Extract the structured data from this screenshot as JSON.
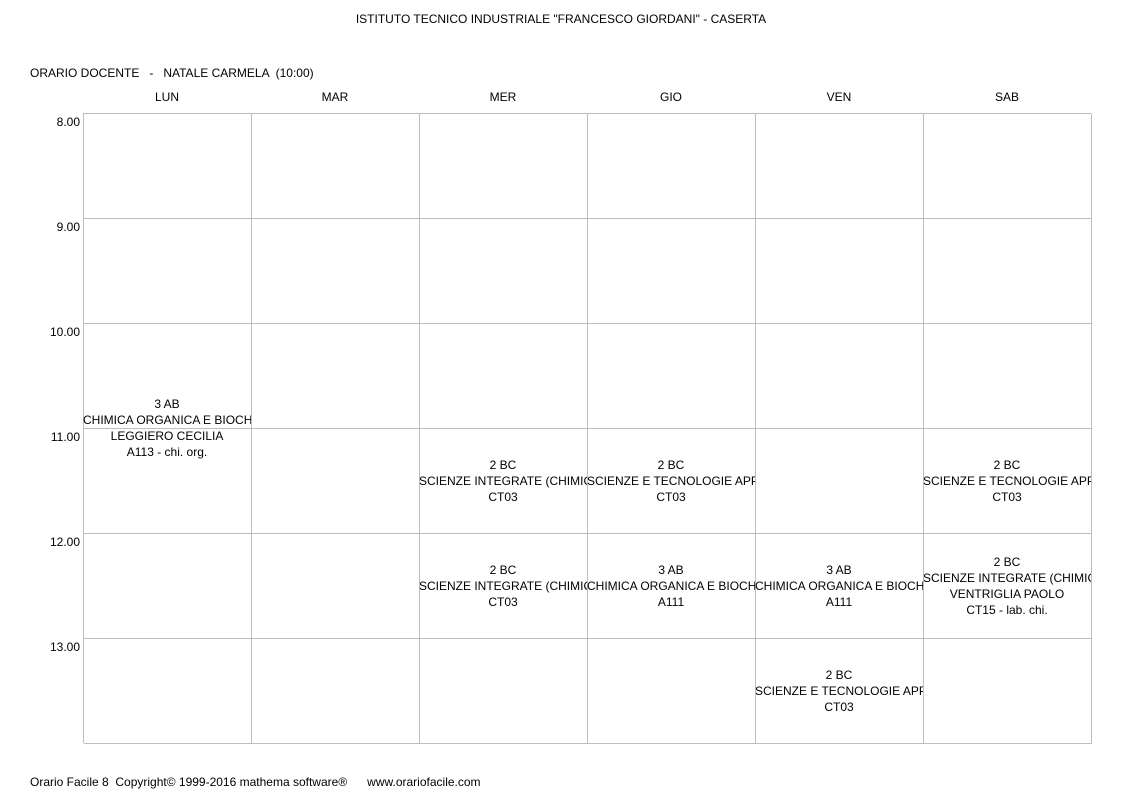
{
  "school_title": "ISTITUTO TECNICO INDUSTRIALE \"FRANCESCO GIORDANI\" - CASERTA",
  "teacher_line": "ORARIO DOCENTE   -   NATALE CARMELA  (10:00)",
  "days": [
    "LUN",
    "MAR",
    "MER",
    "GIO",
    "VEN",
    "SAB"
  ],
  "times": [
    "8.00",
    "9.00",
    "10.00",
    "11.00",
    "12.00",
    "13.00"
  ],
  "lessons": [
    {
      "day": 0,
      "start": 2,
      "span": 2,
      "lines": [
        "3 AB",
        "CHIMICA ORGANICA E BIOCHIMI",
        "LEGGIERO CECILIA",
        "A113 - chi. org."
      ]
    },
    {
      "day": 2,
      "start": 3,
      "span": 1,
      "lines": [
        "2 BC",
        "SCIENZE INTEGRATE (CHIMICA",
        "CT03"
      ]
    },
    {
      "day": 3,
      "start": 3,
      "span": 1,
      "lines": [
        "2 BC",
        "SCIENZE E TECNOLOGIE APPLI",
        "CT03"
      ]
    },
    {
      "day": 5,
      "start": 3,
      "span": 1,
      "lines": [
        "2 BC",
        "SCIENZE E TECNOLOGIE APPLI",
        "CT03"
      ]
    },
    {
      "day": 2,
      "start": 4,
      "span": 1,
      "lines": [
        "2 BC",
        "SCIENZE INTEGRATE (CHIMICA",
        "CT03"
      ]
    },
    {
      "day": 3,
      "start": 4,
      "span": 1,
      "lines": [
        "3 AB",
        "CHIMICA ORGANICA E BIOCHIMI",
        "A111"
      ]
    },
    {
      "day": 4,
      "start": 4,
      "span": 1,
      "lines": [
        "3 AB",
        "CHIMICA ORGANICA E BIOCHIMI",
        "A111"
      ]
    },
    {
      "day": 5,
      "start": 4,
      "span": 1,
      "lines": [
        "2 BC",
        "SCIENZE INTEGRATE (CHIMICA",
        "VENTRIGLIA PAOLO",
        "CT15 - lab. chi."
      ]
    },
    {
      "day": 4,
      "start": 5,
      "span": 1,
      "lines": [
        "2 BC",
        "SCIENZE E TECNOLOGIE APPLI",
        "CT03"
      ]
    }
  ],
  "footer": "Orario Facile 8  Copyright© 1999-2016 mathema software®      www.orariofacile.com"
}
